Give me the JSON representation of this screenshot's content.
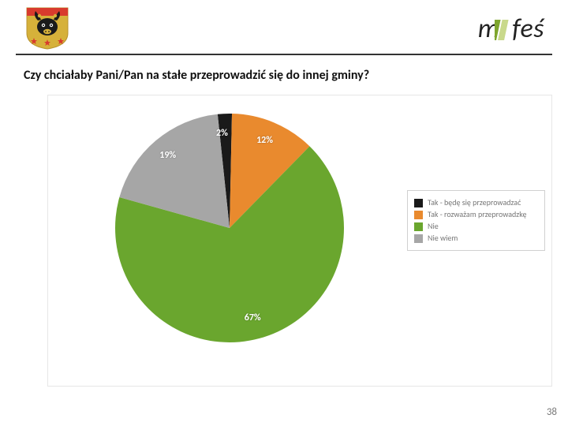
{
  "header": {
    "logo_text": "mafeś",
    "logo_bar_color_1": "#7fa62e",
    "logo_bar_color_2": "#c9d98b"
  },
  "question": "Czy chciałaby Pani/Pan na stałe przeprowadzić się do innej gminy?",
  "page_number": "38",
  "pie": {
    "type": "pie",
    "start_angle_deg": -6,
    "direction": "clockwise",
    "background_color": "#ffffff",
    "slices": [
      {
        "label": "Tak - będę się przeprowadzać",
        "value": 2,
        "pct_text": "2%",
        "color": "#1a1a1a"
      },
      {
        "label": "Tak - rozważam przeprowadzkę",
        "value": 12,
        "pct_text": "12%",
        "color": "#e98a2e"
      },
      {
        "label": "Nie",
        "value": 67,
        "pct_text": "67%",
        "color": "#6aa62e"
      },
      {
        "label": "Nie wiem",
        "value": 19,
        "pct_text": "19%",
        "color": "#a6a6a6"
      }
    ],
    "label_fontsize": 12,
    "label_color": "#ffffff",
    "radius": 145,
    "stroke": "#ffffff",
    "stroke_width": 0
  },
  "legend": {
    "border_color": "#d0d0d0",
    "text_color": "#777777",
    "fontsize": 10
  },
  "crest": {
    "shield_fill": "#d6b13a",
    "shield_top": "#d83b2d",
    "bull_color": "#1a1a1a",
    "star_color": "#d83b2d",
    "ring_color": "#d6b13a"
  }
}
